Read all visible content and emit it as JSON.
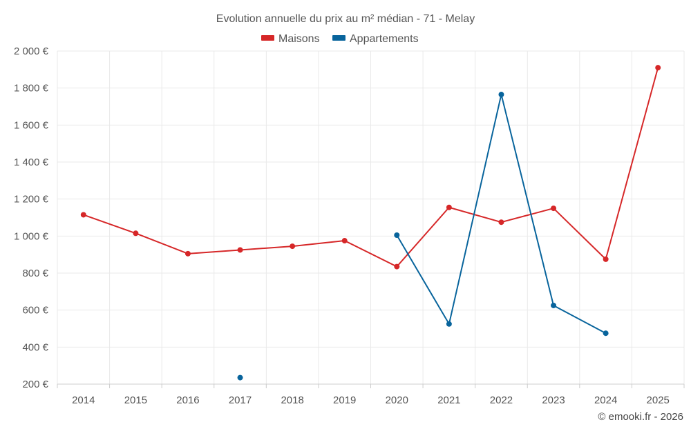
{
  "chart_data": {
    "type": "line",
    "title": "Evolution annuelle du prix au m² médian - 71 - Melay",
    "categories": [
      "2014",
      "2015",
      "2016",
      "2017",
      "2018",
      "2019",
      "2020",
      "2021",
      "2022",
      "2023",
      "2024",
      "2025"
    ],
    "ylim": [
      200,
      2000
    ],
    "yticks": [
      200,
      400,
      600,
      800,
      1000,
      1200,
      1400,
      1600,
      1800,
      2000
    ],
    "ytick_labels": [
      "200 €",
      "400 €",
      "600 €",
      "800 €",
      "1 000 €",
      "1 200 €",
      "1 400 €",
      "1 600 €",
      "1 800 €",
      "2 000 €"
    ],
    "xlabel": "",
    "ylabel": "",
    "grid": true,
    "legend_position": "top-center",
    "series": [
      {
        "name": "Maisons",
        "color": "#d62728",
        "values": [
          1115,
          1015,
          905,
          925,
          945,
          975,
          835,
          1155,
          1075,
          1150,
          875,
          1910
        ]
      },
      {
        "name": "Appartements",
        "color": "#08649c",
        "values": [
          null,
          null,
          null,
          235,
          null,
          null,
          1005,
          525,
          1765,
          625,
          475,
          null
        ]
      }
    ]
  },
  "credit": "© emooki.fr - 2026"
}
